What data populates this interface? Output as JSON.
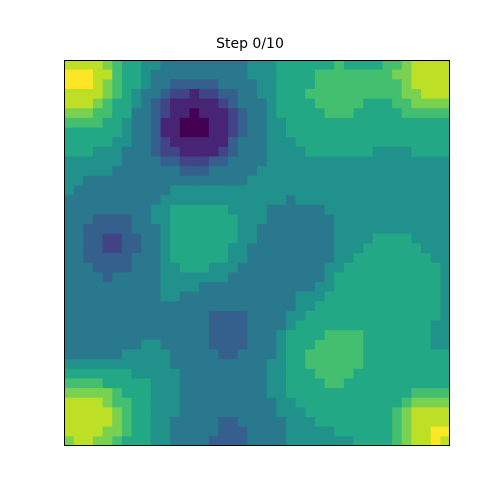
{
  "chart_data": {
    "type": "heatmap",
    "title": "Step 0/10",
    "colormap": "viridis",
    "axes_visible": false,
    "grid": false,
    "legend": false,
    "peaks": [
      {
        "x": 0.03,
        "y": 0.05,
        "value": 1.0
      },
      {
        "x": 0.97,
        "y": 0.04,
        "value": 0.85
      },
      {
        "x": 0.05,
        "y": 0.92,
        "value": 0.9
      },
      {
        "x": 0.97,
        "y": 0.97,
        "value": 0.95
      },
      {
        "x": 0.7,
        "y": 0.08,
        "value": 0.45
      },
      {
        "x": 0.34,
        "y": 0.17,
        "value": -1.0
      },
      {
        "x": 0.13,
        "y": 0.47,
        "value": -0.55
      },
      {
        "x": 0.43,
        "y": 0.7,
        "value": -0.45
      },
      {
        "x": 0.43,
        "y": 0.98,
        "value": -0.4
      },
      {
        "x": 0.33,
        "y": 0.45,
        "value": 0.3
      },
      {
        "x": 0.69,
        "y": 0.78,
        "value": 0.45
      },
      {
        "x": 0.6,
        "y": 0.5,
        "value": -0.25
      },
      {
        "x": 0.82,
        "y": 0.6,
        "value": 0.3
      },
      {
        "x": 0.05,
        "y": 0.72,
        "value": -0.35
      }
    ]
  }
}
